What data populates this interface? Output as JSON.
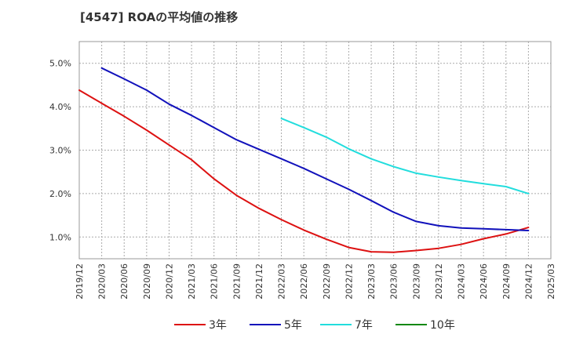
{
  "chart_data": {
    "type": "line",
    "title": "[4547]  ROAの平均値の推移",
    "xlabel": "",
    "ylabel": "",
    "x_ticks": [
      "2019/12",
      "2020/03",
      "2020/06",
      "2020/09",
      "2020/12",
      "2021/03",
      "2021/06",
      "2021/09",
      "2021/12",
      "2022/03",
      "2022/06",
      "2022/09",
      "2022/12",
      "2023/03",
      "2023/06",
      "2023/09",
      "2023/12",
      "2024/03",
      "2024/06",
      "2024/09",
      "2024/12",
      "2025/03"
    ],
    "y_ticks": [
      "1.0%",
      "2.0%",
      "3.0%",
      "4.0%",
      "5.0%"
    ],
    "y_tick_values": [
      1.0,
      2.0,
      3.0,
      4.0,
      5.0
    ],
    "ylim": [
      0.5,
      5.5
    ],
    "grid": true,
    "legend_position": "bottom",
    "series": [
      {
        "name": "3年",
        "color": "#dd1111",
        "x": [
          "2019/12",
          "2020/03",
          "2020/06",
          "2020/09",
          "2020/12",
          "2021/03",
          "2021/06",
          "2021/09",
          "2021/12",
          "2022/03",
          "2022/06",
          "2022/09",
          "2022/12",
          "2023/03",
          "2023/06",
          "2023/09",
          "2023/12",
          "2024/03",
          "2024/06",
          "2024/09",
          "2024/12"
        ],
        "values": [
          4.38,
          4.08,
          3.78,
          3.46,
          3.12,
          2.78,
          2.34,
          1.96,
          1.66,
          1.4,
          1.16,
          0.95,
          0.76,
          0.66,
          0.65,
          0.69,
          0.74,
          0.83,
          0.96,
          1.07,
          1.22
        ]
      },
      {
        "name": "5年",
        "color": "#1111bb",
        "x": [
          "2020/03",
          "2020/06",
          "2020/09",
          "2020/12",
          "2021/03",
          "2021/06",
          "2021/09",
          "2021/12",
          "2022/03",
          "2022/06",
          "2022/09",
          "2022/12",
          "2023/03",
          "2023/06",
          "2023/09",
          "2023/12",
          "2024/03",
          "2024/06",
          "2024/09",
          "2024/12"
        ],
        "values": [
          4.89,
          4.64,
          4.38,
          4.06,
          3.8,
          3.52,
          3.24,
          3.02,
          2.8,
          2.58,
          2.34,
          2.1,
          1.84,
          1.57,
          1.36,
          1.26,
          1.21,
          1.19,
          1.17,
          1.15
        ]
      },
      {
        "name": "7年",
        "color": "#22dddd",
        "x": [
          "2022/03",
          "2022/06",
          "2022/09",
          "2022/12",
          "2023/03",
          "2023/06",
          "2023/09",
          "2023/12",
          "2024/03",
          "2024/06",
          "2024/09",
          "2024/12"
        ],
        "values": [
          3.73,
          3.52,
          3.3,
          3.03,
          2.8,
          2.62,
          2.47,
          2.38,
          2.3,
          2.23,
          2.16,
          2.0
        ]
      },
      {
        "name": "10年",
        "color": "#118811",
        "x": [],
        "values": []
      }
    ]
  }
}
